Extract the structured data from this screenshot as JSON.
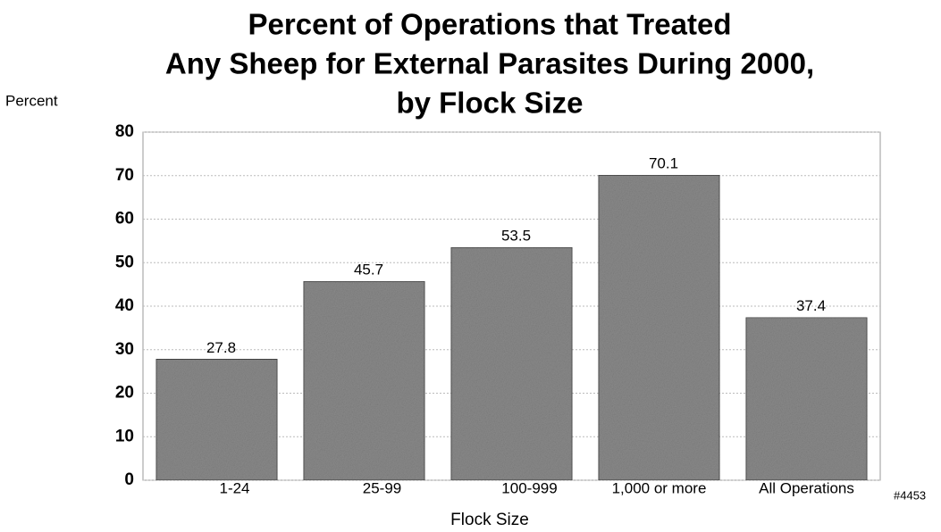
{
  "chart_data": {
    "type": "bar",
    "title": [
      "Percent of Operations that Treated",
      "Any Sheep for External Parasites During 2000,",
      "by Flock Size"
    ],
    "y_label": "Percent",
    "x_label": "Flock Size",
    "annotation": "#4453",
    "categories": [
      "1-24",
      "25-99",
      "100-999",
      "1,000 or more",
      "All Operations"
    ],
    "values": [
      27.8,
      45.7,
      53.5,
      70.1,
      37.4
    ],
    "color": "#8a8a8a",
    "ylim": [
      0,
      80
    ],
    "yticks": [
      0,
      10,
      20,
      30,
      40,
      50,
      60,
      70,
      80
    ],
    "grid": true
  }
}
